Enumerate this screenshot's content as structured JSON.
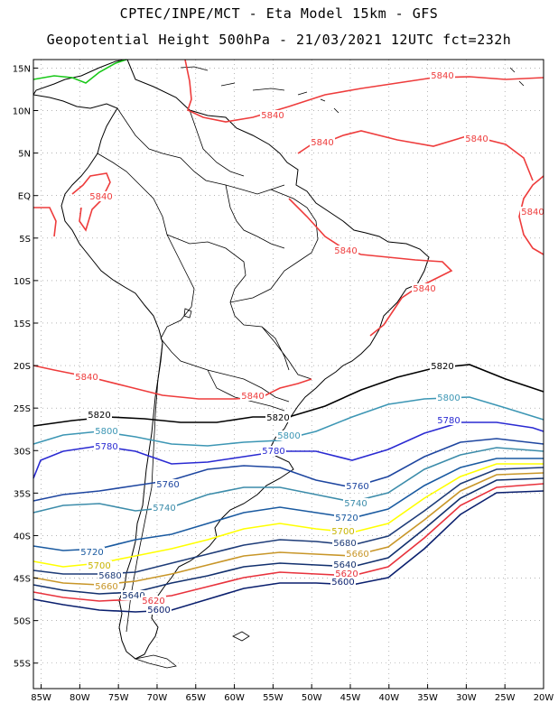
{
  "title_line1": "CPTEC/INPE/MCT  -  Eta Model 15km - GFS",
  "title_line2": "Geopotential Height 500hPa - 21/03/2021 12UTC fct=232h",
  "lat_ticks": [
    "15N",
    "10N",
    "5N",
    "EQ",
    "5S",
    "10S",
    "15S",
    "20S",
    "25S",
    "30S",
    "35S",
    "40S",
    "45S",
    "50S",
    "55S"
  ],
  "lon_ticks": [
    "85W",
    "80W",
    "75W",
    "70W",
    "65W",
    "60W",
    "55W",
    "50W",
    "45W",
    "40W",
    "35W",
    "30W",
    "25W",
    "20W"
  ],
  "colors": {
    "c5600": "#0a1f6e",
    "c5620": "#e8323c",
    "c5640": "#12306e",
    "c5660": "#c89628",
    "c5680": "#1e3c78",
    "c5700": "#ffff00",
    "c5720": "#1a5aa0",
    "c5740": "#3c8caa",
    "c5760": "#1e46a0",
    "c5780": "#2a2ad2",
    "c5800": "#3c96b4",
    "c5820": "#000000",
    "c5840": "#ee3c3c",
    "c5860": "#19c819",
    "coast": "#000000"
  },
  "contour_labels": [
    {
      "text": "5840",
      "color": "c5840"
    },
    {
      "text": "5840",
      "color": "c5840"
    },
    {
      "text": "5840",
      "color": "c5840"
    },
    {
      "text": "5840",
      "color": "c5840"
    },
    {
      "text": "5840",
      "color": "c5840"
    },
    {
      "text": "5840",
      "color": "c5840"
    },
    {
      "text": "5840",
      "color": "c5840"
    },
    {
      "text": "5840",
      "color": "c5840"
    },
    {
      "text": "5840",
      "color": "c5840"
    },
    {
      "text": "5840",
      "color": "c5840"
    },
    {
      "text": "5820",
      "color": "c5820"
    },
    {
      "text": "5820",
      "color": "c5820"
    },
    {
      "text": "5820",
      "color": "c5820"
    },
    {
      "text": "5800",
      "color": "c5800"
    },
    {
      "text": "5800",
      "color": "c5800"
    },
    {
      "text": "5800",
      "color": "c5800"
    },
    {
      "text": "5780",
      "color": "c5780"
    },
    {
      "text": "5780",
      "color": "c5780"
    },
    {
      "text": "5780",
      "color": "c5780"
    },
    {
      "text": "5760",
      "color": "c5760"
    },
    {
      "text": "5760",
      "color": "c5760"
    },
    {
      "text": "5740",
      "color": "c5740"
    },
    {
      "text": "5740",
      "color": "c5740"
    },
    {
      "text": "5720",
      "color": "c5720"
    },
    {
      "text": "5720",
      "color": "c5720"
    },
    {
      "text": "5700",
      "color": "c5700"
    },
    {
      "text": "5700",
      "color": "c5700"
    },
    {
      "text": "5680",
      "color": "c5680"
    },
    {
      "text": "5680",
      "color": "c5680"
    },
    {
      "text": "5660",
      "color": "c5660"
    },
    {
      "text": "5660",
      "color": "c5660"
    },
    {
      "text": "5640",
      "color": "c5640"
    },
    {
      "text": "5640",
      "color": "c5640"
    },
    {
      "text": "5620",
      "color": "c5620"
    },
    {
      "text": "5620",
      "color": "c5620"
    },
    {
      "text": "5600",
      "color": "c5600"
    },
    {
      "text": "5600",
      "color": "c5600"
    }
  ]
}
